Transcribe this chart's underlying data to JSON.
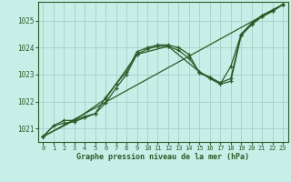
{
  "bg_color": "#c8eee8",
  "grid_color": "#aad4cc",
  "line_color": "#2d5a27",
  "xlabel": "Graphe pression niveau de la mer (hPa)",
  "xlim": [
    -0.5,
    23.5
  ],
  "ylim": [
    1020.5,
    1025.7
  ],
  "yticks": [
    1021,
    1022,
    1023,
    1024,
    1025
  ],
  "xticks": [
    0,
    1,
    2,
    3,
    4,
    5,
    6,
    7,
    8,
    9,
    10,
    11,
    12,
    13,
    14,
    15,
    16,
    17,
    18,
    19,
    20,
    21,
    22,
    23
  ],
  "line1_x": [
    0,
    1,
    2,
    3,
    4,
    5,
    6,
    7,
    8,
    9,
    10,
    11,
    12,
    13,
    14,
    15,
    16,
    17,
    18,
    19,
    20,
    21,
    22,
    23
  ],
  "line1_y": [
    1020.7,
    1021.1,
    1021.3,
    1021.3,
    1021.45,
    1021.55,
    1022.15,
    1022.65,
    1023.1,
    1023.85,
    1024.0,
    1024.1,
    1024.1,
    1024.0,
    1023.75,
    1023.05,
    1022.9,
    1022.7,
    1022.85,
    1024.5,
    1024.9,
    1025.2,
    1025.4,
    1025.6
  ],
  "line2_x": [
    0,
    1,
    2,
    3,
    4,
    5,
    6,
    7,
    8,
    9,
    10,
    11,
    12,
    13,
    14,
    15,
    16,
    17,
    18,
    19,
    20,
    21,
    22,
    23
  ],
  "line2_y": [
    1020.7,
    1021.1,
    1021.2,
    1021.25,
    1021.4,
    1021.55,
    1021.95,
    1022.5,
    1023.0,
    1023.75,
    1023.95,
    1024.05,
    1024.05,
    1023.9,
    1023.6,
    1023.1,
    1022.85,
    1022.65,
    1023.3,
    1024.5,
    1024.9,
    1025.15,
    1025.35,
    1025.6
  ],
  "line3_x": [
    0,
    3,
    6,
    9,
    12,
    15,
    16,
    17,
    18,
    19,
    20,
    21,
    22,
    23
  ],
  "line3_y": [
    1020.7,
    1021.3,
    1022.1,
    1023.75,
    1024.05,
    1023.1,
    1022.9,
    1022.65,
    1022.75,
    1024.45,
    1024.85,
    1025.15,
    1025.35,
    1025.6
  ],
  "line4_x": [
    0,
    23
  ],
  "line4_y": [
    1020.7,
    1025.6
  ]
}
